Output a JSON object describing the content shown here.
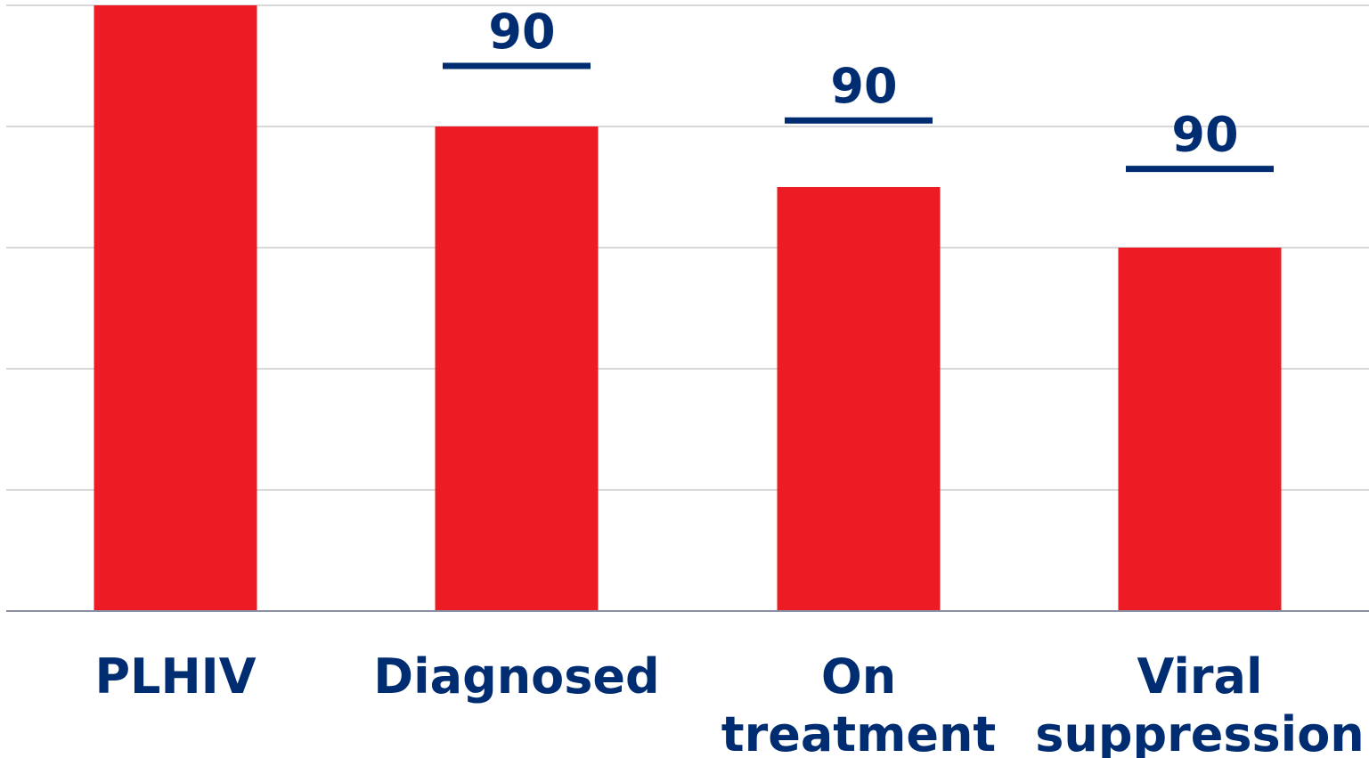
{
  "chart_data": {
    "type": "bar",
    "categories": [
      [
        "PLHIV"
      ],
      [
        "Diagnosed"
      ],
      [
        "On",
        "treatment"
      ],
      [
        "Viral",
        "suppression"
      ]
    ],
    "values": [
      100,
      80,
      70,
      60
    ],
    "ylim": [
      0,
      100
    ],
    "grid": true,
    "gridline_values": [
      20,
      40,
      60,
      80,
      100
    ],
    "targets": [
      null,
      {
        "label": "90",
        "value": 90
      },
      {
        "label": "90",
        "value": 81
      },
      {
        "label": "90",
        "value": 73
      }
    ],
    "colors": {
      "bar": "#ed1c24",
      "target": "#002d72",
      "label": "#002d72",
      "grid": "#d9d9d9",
      "axis": "#8a8fa3"
    },
    "title": "",
    "xlabel": "",
    "ylabel": ""
  }
}
